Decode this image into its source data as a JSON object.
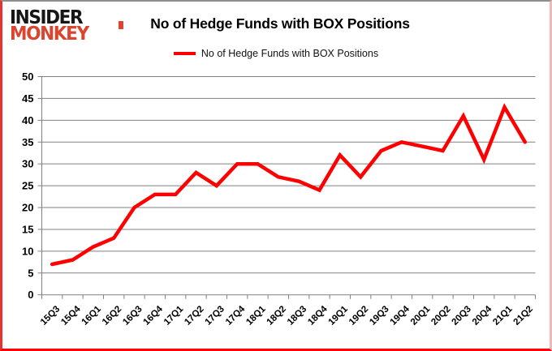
{
  "logo": {
    "line1": "INSIDER",
    "line2": "MONKEY"
  },
  "title": "No of Hedge Funds with BOX Positions",
  "legend": {
    "label": "No of Hedge Funds with BOX Positions"
  },
  "chart_data": {
    "type": "line",
    "title": "No of Hedge Funds with BOX Positions",
    "categories": [
      "15Q3",
      "15Q4",
      "16Q1",
      "16Q2",
      "16Q3",
      "16Q4",
      "17Q1",
      "17Q2",
      "17Q3",
      "17Q4",
      "18Q1",
      "18Q2",
      "18Q3",
      "18Q4",
      "19Q1",
      "19Q2",
      "19Q3",
      "19Q4",
      "20Q1",
      "20Q2",
      "20Q3",
      "20Q4",
      "21Q1",
      "21Q2"
    ],
    "series": [
      {
        "name": "No of Hedge Funds with BOX Positions",
        "color": "#ff0000",
        "values": [
          7,
          8,
          11,
          13,
          20,
          23,
          23,
          28,
          25,
          30,
          30,
          27,
          26,
          24,
          32,
          27,
          33,
          35,
          34,
          33,
          41,
          31,
          43,
          35
        ]
      }
    ],
    "xlabel": "",
    "ylabel": "",
    "ylim": [
      0,
      50
    ],
    "ytick_step": 5,
    "grid": true,
    "grid_color": "#808080",
    "axis_color": "#808080",
    "legend_position": "top-center"
  }
}
